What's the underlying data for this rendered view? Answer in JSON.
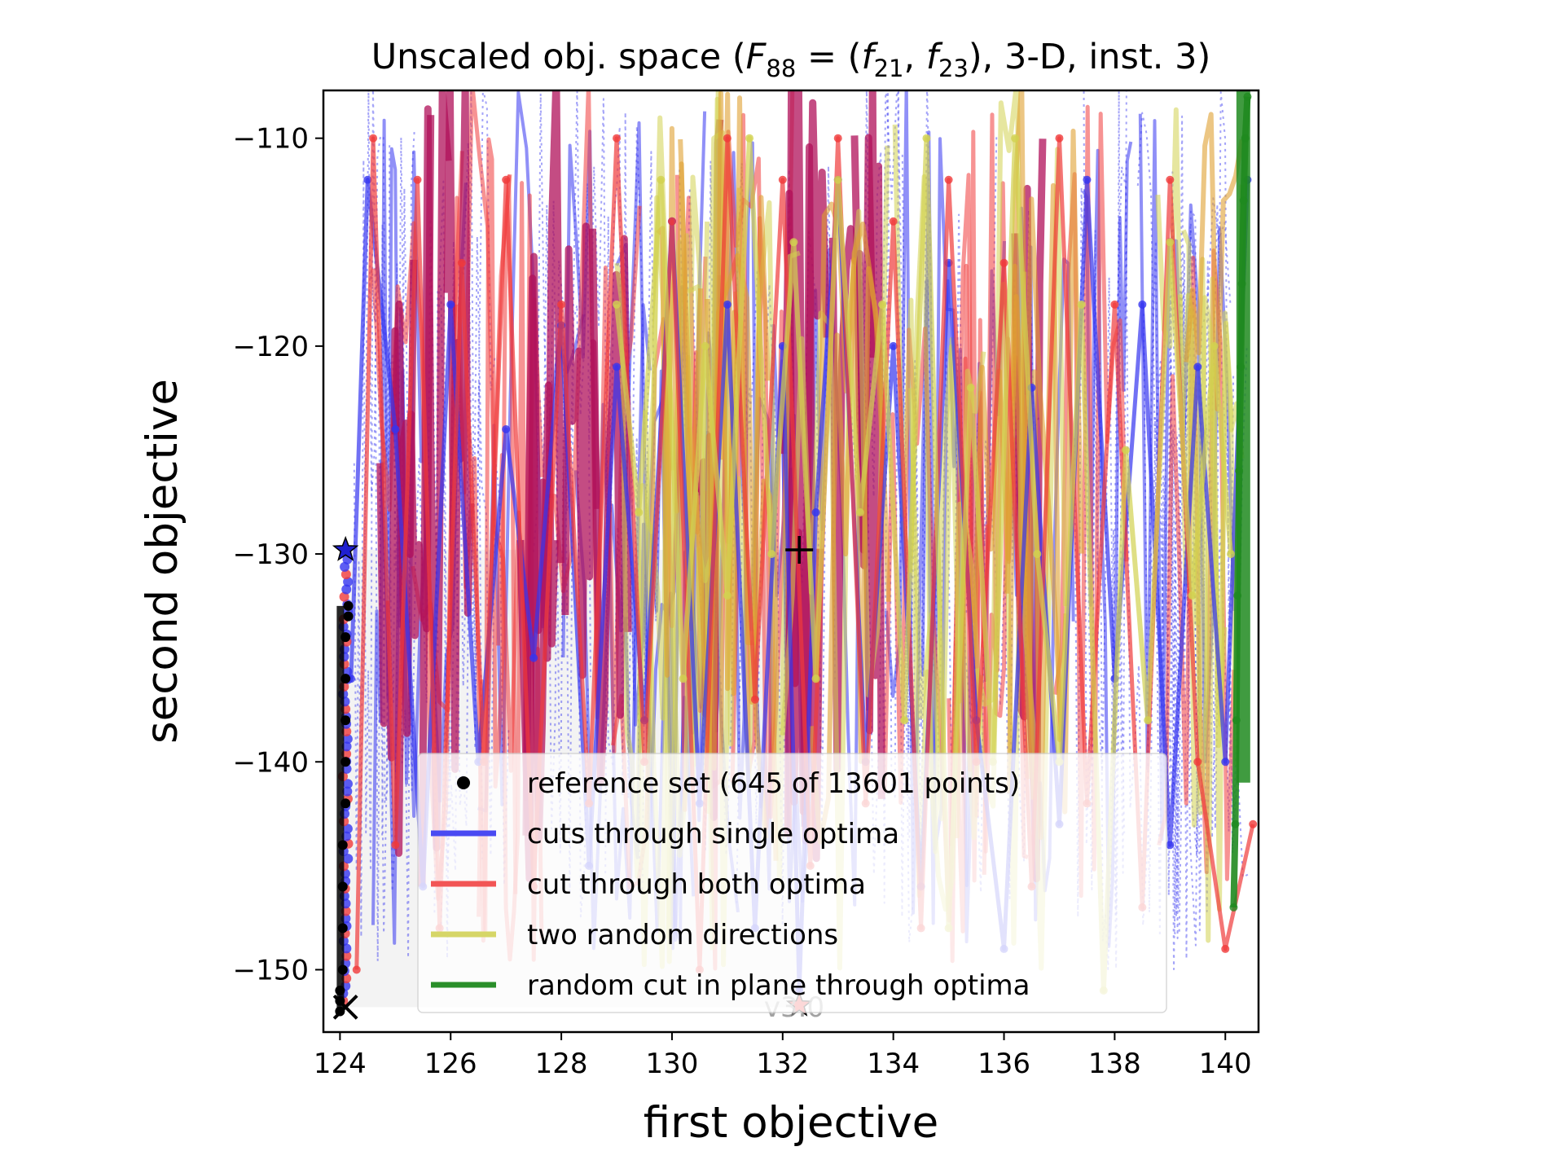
{
  "chart_data": {
    "type": "line",
    "title_prefix": "Unscaled obj. space (",
    "title_F": "F",
    "title_F_sub": "88",
    "title_eq": " = (",
    "title_f1": "f",
    "title_f1_sub": "21",
    "title_comma": ", ",
    "title_f2": "f",
    "title_f2_sub": "23",
    "title_suffix": "), 3-D, inst. 3)",
    "xlabel": "first objective",
    "ylabel": "second objective",
    "xlim": [
      123.7,
      140.6
    ],
    "ylim": [
      -153,
      -107.7
    ],
    "x_ticks": [
      124,
      126,
      128,
      130,
      132,
      134,
      136,
      138,
      140
    ],
    "y_ticks": [
      -110,
      -120,
      -130,
      -140,
      -150
    ],
    "x_tick_labels": [
      "124",
      "126",
      "128",
      "130",
      "132",
      "134",
      "136",
      "138",
      "140"
    ],
    "y_tick_labels": [
      "−110",
      "−120",
      "−130",
      "−140",
      "−150"
    ],
    "grid": false,
    "legend_placement": "lower-right",
    "legend": [
      {
        "label": "reference set (645 of 13601 points)",
        "style": "dot",
        "color": "#000000"
      },
      {
        "label": "cuts through single optima",
        "style": "line",
        "color": "#4a4af2"
      },
      {
        "label": "cut through both optima",
        "style": "line",
        "color": "#f25555"
      },
      {
        "label": "two random directions",
        "style": "line",
        "color": "#d6d667"
      },
      {
        "label": "random cut in plane through optima",
        "style": "line",
        "color": "#2a8f2a"
      }
    ],
    "watermark": "v3.0",
    "colors": {
      "single": "#3535f0",
      "both": "#f03a3a",
      "random_dirs": "#d2d250",
      "plane": "#1f8a1f",
      "overlap_single_both": "#b0105a",
      "overlap_random_both": "#e0a030"
    },
    "markers": [
      {
        "name": "optimum-1",
        "shape": "star",
        "x": 124.1,
        "y": -129.8,
        "color": "#1f1fd0"
      },
      {
        "name": "optimum-2",
        "shape": "star",
        "x": 132.3,
        "y": -151.7,
        "color": "#f04040"
      },
      {
        "name": "ideal-point",
        "shape": "cross",
        "x": 124.1,
        "y": -151.8,
        "color": "#000000"
      },
      {
        "name": "nadir-point",
        "shape": "plus",
        "x": 132.3,
        "y": -129.8,
        "color": "#000000"
      }
    ],
    "series": [
      {
        "name": "reference set (645 of 13601 points)",
        "style": "points",
        "x": [
          124.0,
          124.0,
          124.0,
          124.05,
          124.05,
          124.05,
          124.05,
          124.1,
          124.1,
          124.1,
          124.1,
          124.1,
          124.15,
          124.15
        ],
        "y": [
          -152.0,
          -151.5,
          -151.0,
          -150.0,
          -148.0,
          -146.0,
          -144.0,
          -142.0,
          -140.0,
          -138.0,
          -136.0,
          -134.0,
          -133.0,
          -132.5
        ]
      },
      {
        "name": "cuts through single optima",
        "style": "line",
        "x": [
          124.2,
          124.5,
          125.0,
          125.5,
          126.0,
          126.5,
          127.0,
          127.5,
          128.0,
          128.5,
          129.0,
          129.5,
          130.0,
          130.5,
          131.0,
          131.5,
          132.0,
          132.3,
          132.6,
          133.0,
          133.5,
          134.0,
          134.5,
          135.0,
          135.5,
          136.0,
          136.5,
          137.0,
          137.5,
          138.0,
          138.5,
          139.0,
          139.5,
          140.0,
          140.4
        ],
        "y": [
          -136.0,
          -112.0,
          -124.0,
          -146.0,
          -118.0,
          -140.0,
          -124.0,
          -135.0,
          -119.0,
          -145.0,
          -121.0,
          -138.0,
          -114.0,
          -142.0,
          -118.0,
          -148.0,
          -120.0,
          -151.0,
          -128.0,
          -112.0,
          -140.0,
          -120.0,
          -146.0,
          -116.0,
          -138.0,
          -149.0,
          -122.0,
          -143.0,
          -112.0,
          -136.0,
          -118.0,
          -144.0,
          -121.0,
          -140.0,
          -112.0
        ]
      },
      {
        "name": "cut through both optima",
        "style": "line",
        "x": [
          124.3,
          124.6,
          125.0,
          125.4,
          125.8,
          126.2,
          126.6,
          127.0,
          127.5,
          128.0,
          128.5,
          129.0,
          129.5,
          130.0,
          130.5,
          131.0,
          131.5,
          132.0,
          132.5,
          133.0,
          133.5,
          134.0,
          134.5,
          135.0,
          135.5,
          136.0,
          136.5,
          137.0,
          137.5,
          138.0,
          138.5,
          139.0,
          139.5,
          140.0,
          140.5
        ],
        "y": [
          -150.0,
          -110.0,
          -144.0,
          -112.0,
          -148.0,
          -116.0,
          -140.0,
          -112.0,
          -146.0,
          -118.0,
          -142.0,
          -110.0,
          -140.0,
          -114.0,
          -150.0,
          -110.0,
          -137.0,
          -112.0,
          -145.0,
          -110.0,
          -142.0,
          -114.0,
          -148.0,
          -112.0,
          -140.0,
          -116.0,
          -146.0,
          -110.0,
          -142.0,
          -118.0,
          -147.0,
          -112.0,
          -140.0,
          -149.0,
          -143.0
        ]
      },
      {
        "name": "two random directions",
        "style": "line",
        "x": [
          129.0,
          129.4,
          129.8,
          130.2,
          130.6,
          131.0,
          131.4,
          131.8,
          132.2,
          132.6,
          133.0,
          133.4,
          133.8,
          134.2,
          134.6,
          135.0,
          135.4,
          135.8,
          136.2,
          136.6,
          137.0,
          137.4,
          137.8,
          138.2,
          138.6,
          139.0,
          139.4,
          139.8,
          140.1
        ],
        "y": [
          -118.0,
          -128.0,
          -112.0,
          -136.0,
          -120.0,
          -132.0,
          -110.0,
          -130.0,
          -115.0,
          -136.0,
          -112.0,
          -128.0,
          -118.0,
          -138.0,
          -110.0,
          -148.0,
          -122.0,
          -140.0,
          -110.0,
          -130.0,
          -140.0,
          -118.0,
          -151.0,
          -125.0,
          -138.0,
          -115.0,
          -132.0,
          -120.0,
          -130.0
        ]
      },
      {
        "name": "random cut in plane through optima",
        "style": "line",
        "x": [
          140.15,
          140.18,
          140.2,
          140.22,
          140.25,
          140.28,
          140.3,
          140.33,
          140.36,
          140.4
        ],
        "y": [
          -147.0,
          -143.0,
          -138.0,
          -132.0,
          -126.0,
          -121.0,
          -117.0,
          -113.0,
          -110.0,
          -108.0
        ]
      }
    ]
  }
}
